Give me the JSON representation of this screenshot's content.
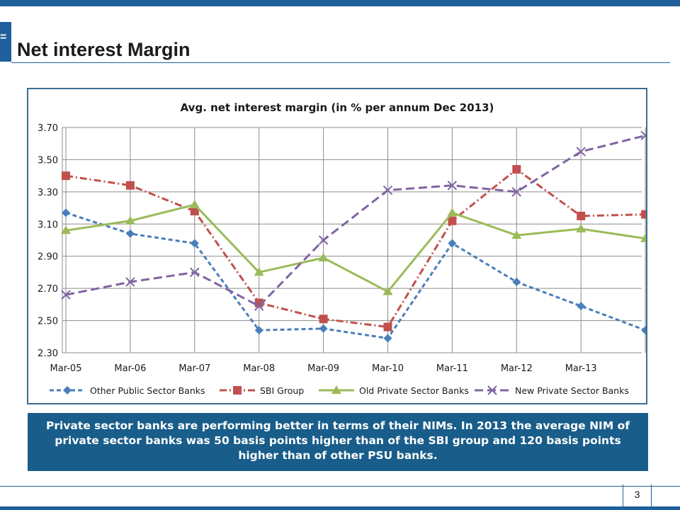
{
  "slide": {
    "title": "Net interest Margin",
    "page_number": "3",
    "side_tab_glyph": "=",
    "callout": "Private sector banks are performing better in terms of their NIMs. In 2013 the average NIM of private sector banks was 50 basis points higher than of the SBI group and 120 basis points higher than of other PSU banks."
  },
  "colors": {
    "accent": "#1f5f9c",
    "callout_bg": "#195d8a"
  },
  "chart_data": {
    "type": "line",
    "title": "Avg. net interest margin (in % per annum Dec 2013)",
    "xlabel": "",
    "ylabel": "",
    "categories": [
      "Mar-05",
      "Mar-06",
      "Mar-07",
      "Mar-08",
      "Mar-09",
      "Mar-10",
      "Mar-11",
      "Mar-12",
      "Mar-13",
      ""
    ],
    "ylim": [
      2.3,
      3.7
    ],
    "yticks": [
      "2.30",
      "2.50",
      "2.70",
      "2.90",
      "3.10",
      "3.30",
      "3.50",
      "3.70"
    ],
    "grid": true,
    "legend_position": "bottom",
    "series": [
      {
        "name": "Other Public Sector Banks",
        "color": "#4a7ebb",
        "dash": "dashed",
        "marker": "diamond",
        "values": [
          3.17,
          3.04,
          2.98,
          2.44,
          2.45,
          2.39,
          2.98,
          2.74,
          2.59,
          2.44
        ]
      },
      {
        "name": "SBI Group",
        "color": "#c0504d",
        "dash": "dashdot",
        "marker": "square",
        "values": [
          3.4,
          3.34,
          3.18,
          2.61,
          2.51,
          2.46,
          3.12,
          3.44,
          3.15,
          3.16
        ]
      },
      {
        "name": "Old Private Sector Banks",
        "color": "#9bbb59",
        "dash": "solid",
        "marker": "triangle",
        "values": [
          3.06,
          3.12,
          3.22,
          2.8,
          2.89,
          2.68,
          3.17,
          3.03,
          3.07,
          3.01
        ]
      },
      {
        "name": "New Private Sector Banks",
        "color": "#8064a2",
        "dash": "longdash",
        "marker": "x",
        "values": [
          2.66,
          2.74,
          2.8,
          2.59,
          3.0,
          3.31,
          3.34,
          3.3,
          3.55,
          3.65
        ]
      }
    ]
  }
}
